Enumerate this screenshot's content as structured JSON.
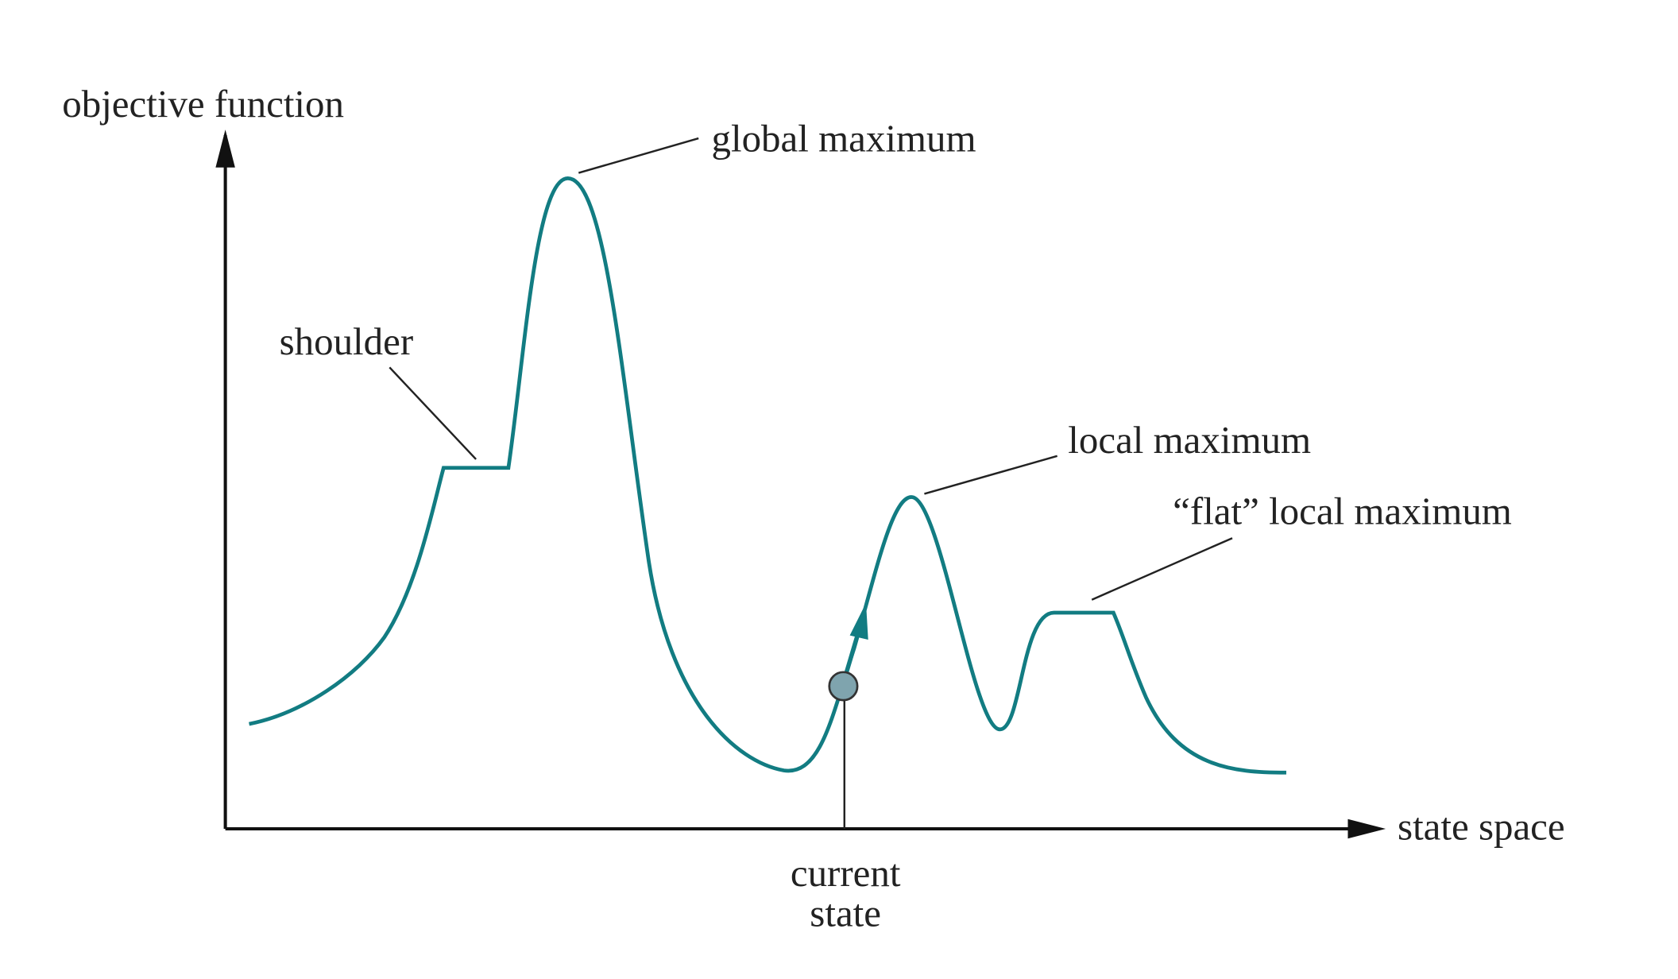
{
  "axes": {
    "y_label": "objective function",
    "x_label": "state space"
  },
  "annotations": {
    "global": "global maximum",
    "shoulder": "shoulder",
    "local": "local maximum",
    "flat": "“flat” local maximum"
  },
  "current_state": [
    "current",
    "state"
  ]
}
